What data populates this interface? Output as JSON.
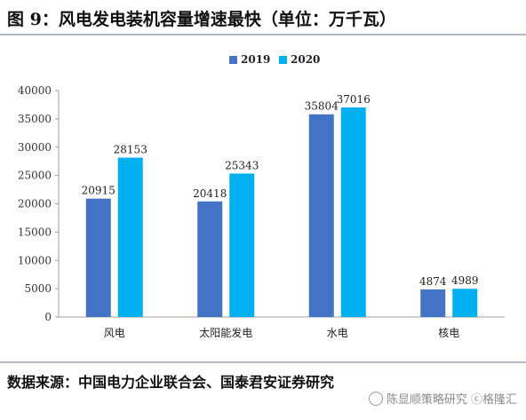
{
  "header": {
    "title": "图 9：风电发电装机容量增速最快（单位：万千瓦）"
  },
  "footer": {
    "source": "数据来源：中国电力企业联合会、国泰君安证券研究"
  },
  "watermark": {
    "text": "陈显顺策略研究 ⓒ格隆汇",
    "icon": "wechat-icon"
  },
  "chart_data": {
    "type": "bar",
    "categories": [
      "风电",
      "太阳能发电",
      "水电",
      "核电"
    ],
    "series": [
      {
        "name": "2019",
        "color": "#4472c4",
        "values": [
          20915,
          20418,
          35804,
          4874
        ]
      },
      {
        "name": "2020",
        "color": "#00b0f0",
        "values": [
          28153,
          25343,
          37016,
          4989
        ]
      }
    ],
    "ylim": [
      0,
      40000
    ],
    "yticks": [
      0,
      5000,
      10000,
      15000,
      20000,
      25000,
      30000,
      35000,
      40000
    ],
    "grid": false,
    "legend": "top-center",
    "data_labels": true
  }
}
